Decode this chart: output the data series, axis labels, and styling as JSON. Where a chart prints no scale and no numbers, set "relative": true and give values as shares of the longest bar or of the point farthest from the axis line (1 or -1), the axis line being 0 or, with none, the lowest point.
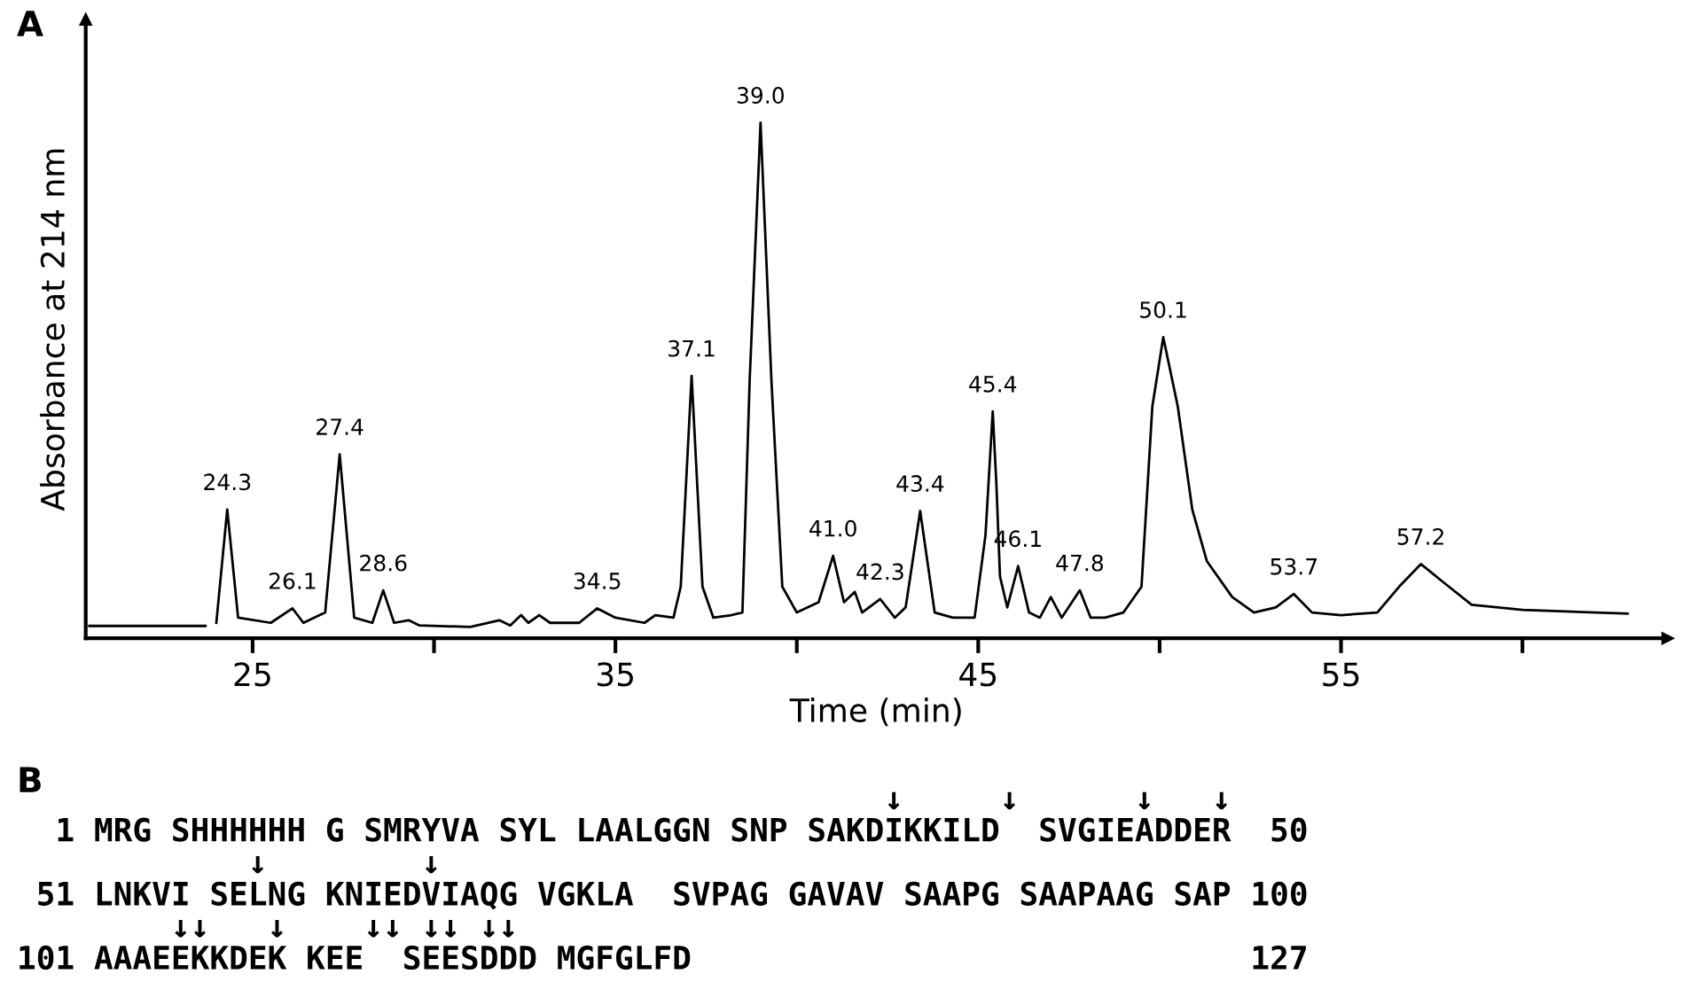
{
  "chart_data": [
    {
      "type": "line",
      "title": "A",
      "xlabel": "Time (min)",
      "ylabel": "Absorbance at 214 nm",
      "relative": true,
      "xlim": [
        20.4,
        64
      ],
      "xticks": [
        25,
        {
          "value": 30,
          "label": null
        },
        35,
        {
          "value": 40,
          "label": null
        },
        45,
        {
          "value": 50,
          "label": null
        },
        55,
        {
          "value": 60,
          "label": null
        }
      ],
      "grid": false,
      "marker": "none",
      "line_style": "solid",
      "series": [
        {
          "color": "#000000",
          "x": [
            20.5,
            23.7,
            23.85,
            24.0,
            24.3,
            24.6,
            25.5,
            26.1,
            26.4,
            27.0,
            27.4,
            27.8,
            28.3,
            28.6,
            28.9,
            29.3,
            29.6,
            31.0,
            31.8,
            32.1,
            32.4,
            32.6,
            32.9,
            33.2,
            34.0,
            34.5,
            35.0,
            35.8,
            36.1,
            36.6,
            36.8,
            37.1,
            37.4,
            37.7,
            38.2,
            38.5,
            38.7,
            39.0,
            39.3,
            39.6,
            40.0,
            40.3,
            40.6,
            41.0,
            41.3,
            41.6,
            41.8,
            42.3,
            42.7,
            43.0,
            43.4,
            43.8,
            44.3,
            44.9,
            45.2,
            45.4,
            45.5,
            45.6,
            45.8,
            46.1,
            46.4,
            46.7,
            47.0,
            47.3,
            47.8,
            48.1,
            48.5,
            49.0,
            49.5,
            49.8,
            50.1,
            50.5,
            50.9,
            51.3,
            52.0,
            52.6,
            53.2,
            53.7,
            54.2,
            55.0,
            56.0,
            56.6,
            57.2,
            57.8,
            58.6,
            60.0,
            62.9
          ],
          "values": [
            0.024,
            0.024,
            null,
            0.03,
            0.25,
            0.04,
            0.03,
            0.058,
            0.03,
            0.05,
            0.357,
            0.04,
            0.03,
            0.093,
            0.03,
            0.035,
            0.025,
            0.022,
            0.035,
            0.025,
            0.045,
            0.03,
            0.045,
            0.03,
            0.03,
            0.058,
            0.04,
            0.03,
            0.045,
            0.04,
            0.1,
            0.509,
            0.1,
            0.04,
            0.045,
            0.05,
            0.5,
            1.0,
            0.5,
            0.1,
            0.05,
            0.06,
            0.07,
            0.16,
            0.07,
            0.09,
            0.05,
            0.076,
            0.04,
            0.06,
            0.247,
            0.05,
            0.04,
            0.04,
            0.2,
            0.44,
            0.3,
            0.12,
            0.06,
            0.14,
            0.05,
            0.04,
            0.08,
            0.04,
            0.093,
            0.04,
            0.04,
            0.05,
            0.1,
            0.45,
            0.584,
            0.45,
            0.25,
            0.15,
            0.08,
            0.05,
            0.06,
            0.086,
            0.05,
            0.045,
            0.05,
            0.1,
            0.144,
            0.11,
            0.065,
            0.055,
            0.048
          ]
        }
      ],
      "annotations": [
        {
          "text": "24.3",
          "x": 24.3,
          "y": 0.25
        },
        {
          "text": "26.1",
          "x": 26.1,
          "y": 0.058
        },
        {
          "text": "27.4",
          "x": 27.4,
          "y": 0.357
        },
        {
          "text": "28.6",
          "x": 28.6,
          "y": 0.093
        },
        {
          "text": "34.5",
          "x": 34.5,
          "y": 0.058
        },
        {
          "text": "37.1",
          "x": 37.1,
          "y": 0.509
        },
        {
          "text": "39.0",
          "x": 39.0,
          "y": 1.0
        },
        {
          "text": "41.0",
          "x": 41.0,
          "y": 0.16
        },
        {
          "text": "42.3",
          "x": 42.3,
          "y": 0.076
        },
        {
          "text": "43.4",
          "x": 43.4,
          "y": 0.247
        },
        {
          "text": "45.4",
          "x": 45.4,
          "y": 0.44
        },
        {
          "text": "46.1",
          "x": 46.1,
          "y": 0.14
        },
        {
          "text": "47.8",
          "x": 47.8,
          "y": 0.093
        },
        {
          "text": "50.1",
          "x": 50.1,
          "y": 0.584
        },
        {
          "text": "53.7",
          "x": 53.7,
          "y": 0.086
        },
        {
          "text": "57.2",
          "x": 57.2,
          "y": 0.144
        }
      ]
    },
    {
      "type": "other",
      "title": "B",
      "annotations": [
        "                                             ↓     ↓      ↓   ↓",
        "  1 MRG SHHHHHH G SMRYVA SYL LAALGGN SNP SAKDIKKILD  SVGIEADDER  50",
        "            ↓        ↓",
        " 51 LNKVI SELNG KNIEDVIAQG VGKLA  SVPAG GAVAV SAAPG SAAPAAG SAP 100",
        "        ↓↓   ↓    ↓↓ ↓↓ ↓↓",
        "101 AAAEEKKDEK KEE  SEESDDD MGFGLFD                             127"
      ]
    }
  ]
}
